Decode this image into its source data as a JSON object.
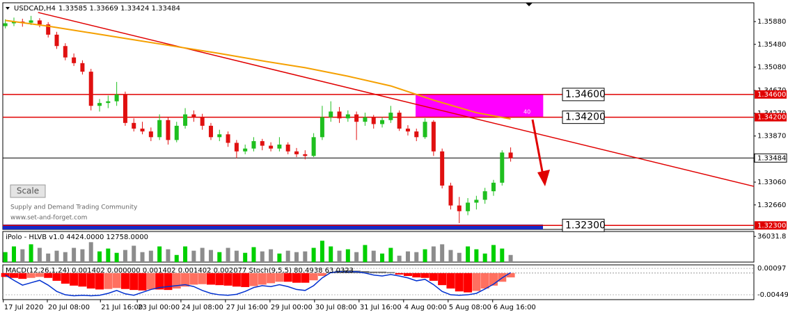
{
  "header": {
    "title": "USDCAD,H4",
    "quote": "1.33585 1.33669 1.33424 1.33484"
  },
  "scale_button": "Scale",
  "watermark": [
    "Supply and Demand Trading Community",
    "www.set-and-forget.com"
  ],
  "chart_data": [
    {
      "type": "candlestick",
      "bull_color": "#1fbf1f",
      "bear_color": "#e01010",
      "open": [
        1.358,
        1.3585,
        1.3588,
        1.3586,
        1.359,
        1.3583,
        1.3565,
        1.3545,
        1.3525,
        1.3515,
        1.35,
        1.344,
        1.3445,
        1.3448,
        1.346,
        1.341,
        1.34,
        1.3395,
        1.3385,
        1.3415,
        1.338,
        1.3405,
        1.3425,
        1.342,
        1.3405,
        1.3385,
        1.339,
        1.3375,
        1.336,
        1.3365,
        1.3378,
        1.337,
        1.3365,
        1.3372,
        1.336,
        1.3355,
        1.3352,
        1.3385,
        1.342,
        1.343,
        1.3418,
        1.3425,
        1.3412,
        1.342,
        1.3408,
        1.3415,
        1.3428,
        1.34,
        1.3395,
        1.3385,
        1.3412,
        1.336,
        1.33,
        1.3265,
        1.3255,
        1.327,
        1.3275,
        1.329,
        1.3305,
        1.3358
      ],
      "high": [
        1.3592,
        1.3595,
        1.3593,
        1.3598,
        1.3594,
        1.3587,
        1.357,
        1.355,
        1.3532,
        1.352,
        1.3505,
        1.3452,
        1.3458,
        1.3482,
        1.3465,
        1.3418,
        1.3412,
        1.3402,
        1.3425,
        1.342,
        1.3412,
        1.3436,
        1.3432,
        1.3426,
        1.341,
        1.3398,
        1.3395,
        1.338,
        1.3372,
        1.3385,
        1.3382,
        1.3376,
        1.3385,
        1.3376,
        1.3366,
        1.3362,
        1.3392,
        1.344,
        1.3448,
        1.3438,
        1.3432,
        1.343,
        1.3428,
        1.3424,
        1.342,
        1.344,
        1.3432,
        1.3406,
        1.34,
        1.3418,
        1.3415,
        1.3365,
        1.3305,
        1.328,
        1.3278,
        1.3282,
        1.3296,
        1.331,
        1.3362,
        1.3367
      ],
      "low": [
        1.3576,
        1.358,
        1.3579,
        1.3582,
        1.3578,
        1.356,
        1.354,
        1.352,
        1.351,
        1.3495,
        1.3432,
        1.343,
        1.3436,
        1.344,
        1.3405,
        1.3395,
        1.339,
        1.3378,
        1.338,
        1.3372,
        1.3376,
        1.34,
        1.3412,
        1.3398,
        1.338,
        1.3378,
        1.3368,
        1.3348,
        1.3355,
        1.336,
        1.3362,
        1.336,
        1.336,
        1.3355,
        1.335,
        1.3346,
        1.335,
        1.338,
        1.3412,
        1.341,
        1.3412,
        1.338,
        1.3405,
        1.34,
        1.3402,
        1.341,
        1.3396,
        1.3388,
        1.3378,
        1.3382,
        1.3352,
        1.3295,
        1.3258,
        1.3234,
        1.3248,
        1.3258,
        1.3268,
        1.3282,
        1.33,
        1.3342
      ],
      "close": [
        1.3585,
        1.3588,
        1.3586,
        1.359,
        1.3583,
        1.3565,
        1.3545,
        1.3525,
        1.3515,
        1.35,
        1.344,
        1.3445,
        1.3448,
        1.346,
        1.341,
        1.34,
        1.3395,
        1.3385,
        1.3415,
        1.338,
        1.3405,
        1.3425,
        1.342,
        1.3405,
        1.3385,
        1.339,
        1.3375,
        1.336,
        1.3365,
        1.3378,
        1.337,
        1.3365,
        1.3372,
        1.336,
        1.3355,
        1.3352,
        1.3385,
        1.342,
        1.343,
        1.3418,
        1.3425,
        1.3412,
        1.342,
        1.3408,
        1.3415,
        1.3428,
        1.34,
        1.3395,
        1.3385,
        1.3412,
        1.336,
        1.33,
        1.3265,
        1.3255,
        1.327,
        1.3275,
        1.329,
        1.3305,
        1.3358,
        1.3348
      ],
      "xlim": [
        -0.3,
        87.4
      ],
      "ylim": [
        1.3223,
        1.3621
      ],
      "yticks": [
        {
          "value": 1.3588,
          "label": "1.35880"
        },
        {
          "value": 1.3548,
          "label": "1.35480"
        },
        {
          "value": 1.3508,
          "label": "1.35080"
        },
        {
          "value": 1.3467,
          "label": "1.34670"
        },
        {
          "value": 1.3427,
          "label": "1.34270"
        },
        {
          "value": 1.3387,
          "label": "1.33870"
        },
        {
          "value": 1.3306,
          "label": "1.33060"
        },
        {
          "value": 1.3266,
          "label": "1.32660"
        }
      ],
      "xticks": [
        {
          "value": -0.24,
          "label": "17 Jul 2020"
        },
        {
          "value": 4.9,
          "label": "20 Jul 08:00"
        },
        {
          "value": 11.1,
          "label": "21 Jul 16:00"
        },
        {
          "value": 15.4,
          "label": "23 Jul 00:00"
        },
        {
          "value": 20.5,
          "label": "24 Jul 08:00"
        },
        {
          "value": 25.7,
          "label": "27 Jul 16:00"
        },
        {
          "value": 30.9,
          "label": "29 Jul 00:00"
        },
        {
          "value": 36.1,
          "label": "30 Jul 08:00"
        },
        {
          "value": 41.3,
          "label": "31 Jul 16:00"
        },
        {
          "value": 46.5,
          "label": "4 Aug 00:00"
        },
        {
          "value": 51.7,
          "label": "5 Aug 08:00"
        },
        {
          "value": 56.9,
          "label": "6 Aug 16:00"
        }
      ],
      "levels": [
        {
          "value": 1.346,
          "label": "1.34600"
        },
        {
          "value": 1.342,
          "label": "1.34200"
        },
        {
          "value": 1.323,
          "label": "1.32300"
        }
      ],
      "level_color": "#e00000",
      "last_price": {
        "value": 1.33484,
        "label": "1.33484"
      },
      "trendline": {
        "x": [
          3.82,
          87.4
        ],
        "y": [
          1.3604,
          1.32986
        ],
        "color": "#e00000"
      },
      "ma": {
        "x": [
          0,
          5,
          10,
          15,
          20,
          25,
          30,
          35,
          40,
          45,
          50,
          55,
          59
        ],
        "values": [
          1.359,
          1.358,
          1.3568,
          1.3556,
          1.3544,
          1.3532,
          1.3519,
          1.3507,
          1.3492,
          1.3475,
          1.345,
          1.3428,
          1.3417
        ],
        "color": "#f5a000"
      },
      "zone": {
        "x": [
          47.9,
          62.8
        ],
        "y": [
          1.342,
          1.346
        ],
        "label": "40",
        "color": "#ff00ff"
      }
    },
    {
      "type": "bar",
      "title": "iPolo - HLVB v1.0 4424.0000 12758.0000",
      "bull_color": "#00d000",
      "bear_color": "#8c8c8c",
      "values": [
        14000,
        22000,
        18000,
        25000,
        20000,
        12000,
        16000,
        14000,
        20000,
        18000,
        28000,
        15000,
        19000,
        13000,
        17000,
        23000,
        14000,
        16000,
        22000,
        18000,
        10000,
        22000,
        16000,
        20000,
        17000,
        14000,
        20000,
        16000,
        13000,
        21000,
        15000,
        18000,
        12000,
        16000,
        14000,
        15000,
        20000,
        30000,
        22000,
        16000,
        18000,
        14000,
        24000,
        16000,
        12000,
        20000,
        9000,
        15000,
        14000,
        18000,
        22000,
        25000,
        17000,
        13000,
        22000,
        18000,
        12000,
        24000,
        19000,
        10000
      ],
      "ylim": [
        0,
        43000
      ],
      "yticks": [
        36031.8
      ]
    },
    {
      "type": "macd",
      "title": "MACD(12,26,1,24) 0.001402 0.000000 0.001402 0.001402 0.002077 Stoch(9,5,5) 80.4938 63.0323",
      "values": [
        -0.0008,
        -0.001,
        -0.0012,
        -0.001,
        -0.0008,
        -0.001,
        -0.0016,
        -0.0022,
        -0.0026,
        -0.0028,
        -0.0032,
        -0.0034,
        -0.0033,
        -0.0031,
        -0.0033,
        -0.0035,
        -0.0036,
        -0.0034,
        -0.0034,
        -0.0035,
        -0.0032,
        -0.0028,
        -0.0024,
        -0.0023,
        -0.0024,
        -0.0025,
        -0.0026,
        -0.0028,
        -0.0029,
        -0.0027,
        -0.0024,
        -0.0021,
        -0.0018,
        -0.0018,
        -0.002,
        -0.002,
        -0.0015,
        -0.0006,
        0.0002,
        0.0005,
        0.0006,
        0.0005,
        0.0004,
        0.0003,
        0.0003,
        0.0002,
        -0.0003,
        -0.0006,
        -0.0009,
        -0.001,
        -0.0016,
        -0.0025,
        -0.0032,
        -0.0038,
        -0.004,
        -0.0037,
        -0.0032,
        -0.0026,
        -0.0018,
        -0.0009
      ],
      "signal": [
        -0.0004,
        -0.0015,
        -0.0025,
        -0.002,
        -0.0015,
        -0.0025,
        -0.0038,
        -0.0045,
        -0.0047,
        -0.0046,
        -0.0047,
        -0.0046,
        -0.0042,
        -0.0036,
        -0.0043,
        -0.0046,
        -0.004,
        -0.0034,
        -0.003,
        -0.0028,
        -0.0026,
        -0.0024,
        -0.0028,
        -0.0036,
        -0.0042,
        -0.0045,
        -0.0046,
        -0.0044,
        -0.0038,
        -0.003,
        -0.0026,
        -0.0028,
        -0.0024,
        -0.0028,
        -0.0034,
        -0.0036,
        -0.0026,
        -0.001,
        0.0001,
        0.0003,
        0.0002,
        0.0003,
        0,
        -0.0004,
        -0.0006,
        -0.0003,
        -0.0006,
        -0.001,
        -0.0016,
        -0.0013,
        -0.0024,
        -0.0038,
        -0.0045,
        -0.0046,
        -0.0045,
        -0.0042,
        -0.0033,
        -0.0023,
        -0.001,
        0.0001
      ],
      "grow_color": "#ff0000",
      "shrink_color": "#ff7060",
      "pos_color": "#707070",
      "signal_color": "#0030d0",
      "ylim": [
        -0.0055,
        0.0017
      ],
      "yticks": [
        0.00097,
        -0.004493
      ]
    }
  ]
}
